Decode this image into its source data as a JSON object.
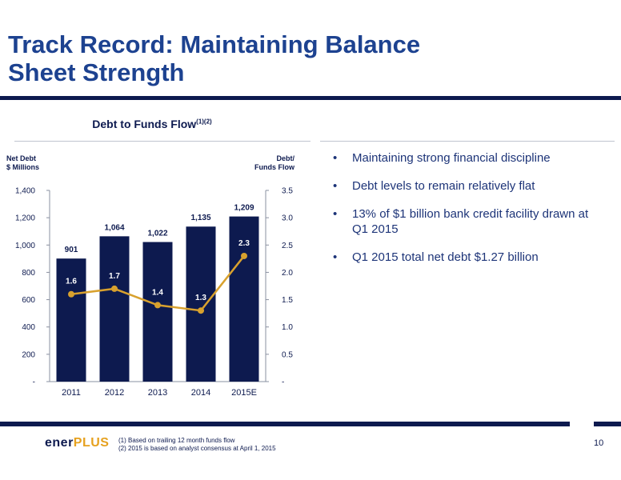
{
  "slide": {
    "title_line1": "Track Record: Maintaining Balance",
    "title_line2": "Sheet Strength",
    "page_number": "10"
  },
  "chart_data": {
    "type": "bar",
    "title": "Debt to Funds Flow",
    "title_superscript": "(1)(2)",
    "left_axis_label_line1": "Net Debt",
    "left_axis_label_line2": "$ Millions",
    "right_axis_label_line1": "Debt/",
    "right_axis_label_line2": "Funds Flow",
    "categories": [
      "2011",
      "2012",
      "2013",
      "2014",
      "2015E"
    ],
    "series": [
      {
        "kind": "bar",
        "axis": "left",
        "values": [
          901,
          1064,
          1022,
          1135,
          1209
        ],
        "value_labels": [
          "901",
          "1,064",
          "1,022",
          "1,135",
          "1,209"
        ],
        "color": "#0d1a4f"
      },
      {
        "kind": "line",
        "axis": "right",
        "values": [
          1.6,
          1.7,
          1.4,
          1.3,
          2.3
        ],
        "value_labels": [
          "1.6",
          "1.7",
          "1.4",
          "1.3",
          "2.3"
        ],
        "color": "#d8a12e"
      }
    ],
    "ylim_left": [
      0,
      1400
    ],
    "ylim_right": [
      0,
      3.5
    ],
    "left_ticks": [
      "-",
      "200",
      "400",
      "600",
      "800",
      "1,000",
      "1,200",
      "1,400"
    ],
    "right_ticks": [
      "-",
      "0.5",
      "1.0",
      "1.5",
      "2.0",
      "2.5",
      "3.0",
      "3.5"
    ],
    "grid": false
  },
  "bullets": [
    "Maintaining strong financial discipline",
    "Debt levels to remain relatively flat",
    "13% of $1 billion bank credit facility drawn at Q1 2015",
    "Q1 2015 total net debt $1.27 billion"
  ],
  "footer": {
    "logo_main": "ener",
    "logo_accent": "PLUS",
    "footnote_1": "(1)   Based on trailing 12 month funds flow",
    "footnote_2": "(2)   2015 is based on analyst consensus at April 1, 2015"
  },
  "colors": {
    "title": "#1d4290",
    "bar": "#0d1a4f",
    "line": "#d8a12e",
    "rule": "#0d1a4f",
    "logo_accent": "#e6a11f"
  }
}
